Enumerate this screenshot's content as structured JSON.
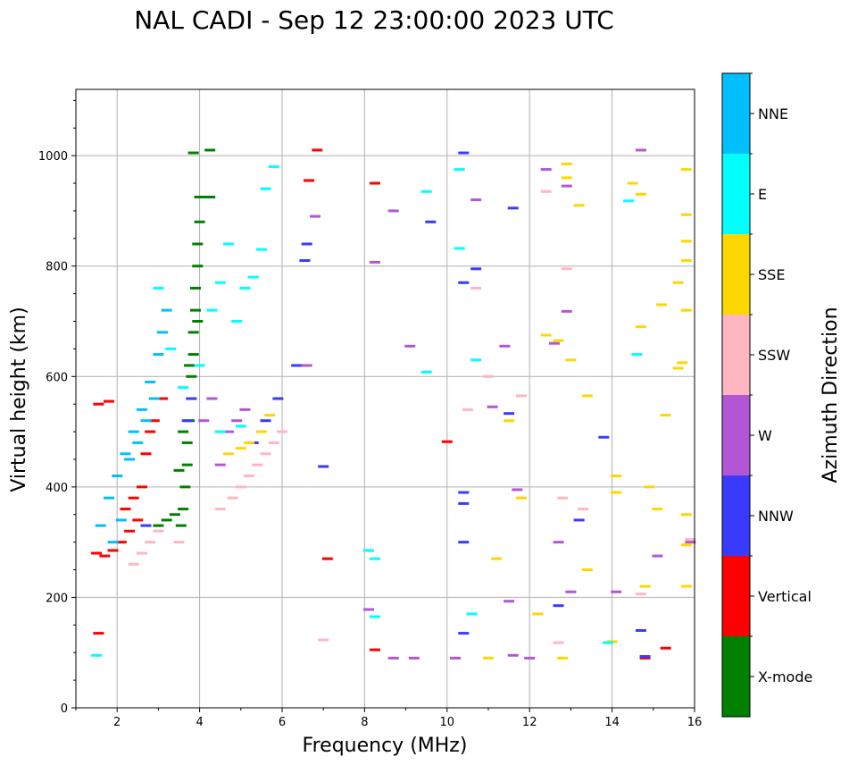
{
  "chart_data": {
    "type": "scatter",
    "title": "NAL CADI - Sep 12 23:00:00 2023 UTC",
    "xlabel": "Frequency (MHz)",
    "ylabel": "Virtual height (km)",
    "xlim": [
      1,
      16
    ],
    "ylim": [
      0,
      1120
    ],
    "x_ticks": [
      2,
      4,
      6,
      8,
      10,
      12,
      14,
      16
    ],
    "y_ticks": [
      0,
      200,
      400,
      600,
      800,
      1000
    ],
    "grid": true,
    "colorbar": {
      "title": "Azimuth Direction",
      "categories": [
        {
          "label": "X-mode",
          "color": "#008000"
        },
        {
          "label": "Vertical",
          "color": "#ff0000"
        },
        {
          "label": "NNW",
          "color": "#3a3aff"
        },
        {
          "label": "W",
          "color": "#b256d6"
        },
        {
          "label": "SSW",
          "color": "#ffb6c1"
        },
        {
          "label": "SSE",
          "color": "#ffd700"
        },
        {
          "label": "E",
          "color": "#00ffff"
        },
        {
          "label": "NNE",
          "color": "#00bfff"
        }
      ]
    },
    "series": [
      {
        "name": "X-mode",
        "points": [
          [
            3.55,
            330
          ],
          [
            3.6,
            360
          ],
          [
            3.65,
            400
          ],
          [
            3.7,
            440
          ],
          [
            3.7,
            480
          ],
          [
            3.75,
            520
          ],
          [
            3.8,
            560
          ],
          [
            3.8,
            600
          ],
          [
            3.85,
            640
          ],
          [
            3.85,
            680
          ],
          [
            3.9,
            720
          ],
          [
            3.9,
            760
          ],
          [
            3.95,
            800
          ],
          [
            3.95,
            840
          ],
          [
            4.0,
            880
          ],
          [
            4.0,
            925
          ],
          [
            3.85,
            1005
          ],
          [
            4.25,
            1010
          ],
          [
            4.25,
            925
          ],
          [
            3.0,
            330
          ],
          [
            3.2,
            340
          ],
          [
            3.4,
            350
          ],
          [
            3.5,
            430
          ],
          [
            3.6,
            500
          ],
          [
            3.75,
            620
          ],
          [
            3.95,
            700
          ]
        ]
      },
      {
        "name": "Vertical",
        "points": [
          [
            1.5,
            280
          ],
          [
            1.7,
            275
          ],
          [
            1.9,
            285
          ],
          [
            2.1,
            300
          ],
          [
            2.3,
            320
          ],
          [
            2.5,
            340
          ],
          [
            2.6,
            400
          ],
          [
            2.7,
            460
          ],
          [
            2.8,
            500
          ],
          [
            2.9,
            520
          ],
          [
            3.1,
            560
          ],
          [
            1.55,
            550
          ],
          [
            1.8,
            555
          ],
          [
            1.55,
            135
          ],
          [
            6.65,
            955
          ],
          [
            6.85,
            1010
          ],
          [
            8.25,
            950
          ],
          [
            7.1,
            270
          ],
          [
            8.25,
            105
          ],
          [
            10.0,
            482
          ],
          [
            14.8,
            90
          ],
          [
            15.3,
            108
          ],
          [
            2.2,
            360
          ],
          [
            2.4,
            380
          ]
        ]
      },
      {
        "name": "NNW",
        "points": [
          [
            3.7,
            520
          ],
          [
            3.8,
            560
          ],
          [
            5.3,
            480
          ],
          [
            5.6,
            520
          ],
          [
            5.9,
            560
          ],
          [
            6.35,
            620
          ],
          [
            6.6,
            840
          ],
          [
            6.55,
            810
          ],
          [
            10.4,
            1005
          ],
          [
            10.4,
            770
          ],
          [
            10.4,
            390
          ],
          [
            10.4,
            370
          ],
          [
            10.4,
            300
          ],
          [
            10.4,
            135
          ],
          [
            9.6,
            880
          ],
          [
            10.7,
            795
          ],
          [
            11.6,
            905
          ],
          [
            11.5,
            533
          ],
          [
            12.7,
            185
          ],
          [
            13.2,
            340
          ],
          [
            13.8,
            490
          ],
          [
            14.7,
            140
          ],
          [
            14.8,
            93
          ],
          [
            2.7,
            330
          ],
          [
            7.0,
            437
          ]
        ]
      },
      {
        "name": "W",
        "points": [
          [
            4.1,
            520
          ],
          [
            4.3,
            560
          ],
          [
            4.5,
            440
          ],
          [
            4.7,
            500
          ],
          [
            4.9,
            520
          ],
          [
            5.1,
            540
          ],
          [
            6.6,
            620
          ],
          [
            6.8,
            890
          ],
          [
            8.25,
            807
          ],
          [
            8.7,
            900
          ],
          [
            9.1,
            655
          ],
          [
            10.7,
            920
          ],
          [
            11.1,
            545
          ],
          [
            11.4,
            655
          ],
          [
            11.7,
            395
          ],
          [
            12.4,
            975
          ],
          [
            12.6,
            660
          ],
          [
            12.9,
            945
          ],
          [
            12.9,
            718
          ],
          [
            13.0,
            210
          ],
          [
            12.7,
            300
          ],
          [
            14.1,
            210
          ],
          [
            14.7,
            1010
          ],
          [
            15.1,
            275
          ],
          [
            15.9,
            300
          ],
          [
            8.1,
            178
          ],
          [
            8.7,
            90
          ],
          [
            9.2,
            90
          ],
          [
            10.2,
            90
          ],
          [
            11.5,
            193
          ],
          [
            11.6,
            95
          ],
          [
            12.0,
            90
          ]
        ]
      },
      {
        "name": "SSW",
        "points": [
          [
            2.4,
            260
          ],
          [
            2.6,
            280
          ],
          [
            2.8,
            300
          ],
          [
            3.0,
            320
          ],
          [
            3.5,
            300
          ],
          [
            4.5,
            360
          ],
          [
            4.8,
            380
          ],
          [
            5.0,
            400
          ],
          [
            5.2,
            420
          ],
          [
            5.4,
            440
          ],
          [
            5.6,
            460
          ],
          [
            5.8,
            480
          ],
          [
            6.0,
            500
          ],
          [
            10.7,
            760
          ],
          [
            11.0,
            600
          ],
          [
            12.4,
            935
          ],
          [
            12.9,
            795
          ],
          [
            12.8,
            380
          ],
          [
            13.3,
            360
          ],
          [
            14.7,
            206
          ],
          [
            15.9,
            305
          ],
          [
            12.7,
            118
          ],
          [
            7.0,
            123
          ],
          [
            10.5,
            540
          ],
          [
            11.8,
            565
          ]
        ]
      },
      {
        "name": "SSE",
        "points": [
          [
            4.7,
            460
          ],
          [
            5.0,
            470
          ],
          [
            5.2,
            480
          ],
          [
            5.5,
            500
          ],
          [
            5.7,
            530
          ],
          [
            12.9,
            985
          ],
          [
            12.9,
            960
          ],
          [
            13.2,
            910
          ],
          [
            13.4,
            565
          ],
          [
            14.5,
            950
          ],
          [
            14.7,
            930
          ],
          [
            14.7,
            690
          ],
          [
            15.2,
            730
          ],
          [
            15.6,
            770
          ],
          [
            15.8,
            720
          ],
          [
            15.7,
            625
          ],
          [
            15.6,
            615
          ],
          [
            15.3,
            530
          ],
          [
            15.8,
            893
          ],
          [
            15.8,
            845
          ],
          [
            15.8,
            810
          ],
          [
            15.8,
            975
          ],
          [
            14.9,
            400
          ],
          [
            15.1,
            360
          ],
          [
            15.8,
            350
          ],
          [
            15.8,
            295
          ],
          [
            15.8,
            220
          ],
          [
            14.8,
            220
          ],
          [
            14.1,
            420
          ],
          [
            14.1,
            390
          ],
          [
            14.0,
            120
          ],
          [
            13.4,
            250
          ],
          [
            13.0,
            630
          ],
          [
            12.7,
            665
          ],
          [
            12.4,
            675
          ],
          [
            12.2,
            170
          ],
          [
            12.8,
            90
          ],
          [
            11.2,
            270
          ],
          [
            11.8,
            380
          ],
          [
            11.5,
            520
          ],
          [
            11.0,
            90
          ]
        ]
      },
      {
        "name": "E",
        "points": [
          [
            3.0,
            760
          ],
          [
            3.3,
            650
          ],
          [
            3.6,
            580
          ],
          [
            4.0,
            620
          ],
          [
            4.3,
            720
          ],
          [
            4.5,
            770
          ],
          [
            4.7,
            840
          ],
          [
            4.9,
            700
          ],
          [
            5.1,
            760
          ],
          [
            5.3,
            780
          ],
          [
            5.5,
            830
          ],
          [
            5.8,
            980
          ],
          [
            5.6,
            940
          ],
          [
            4.5,
            500
          ],
          [
            5.0,
            510
          ],
          [
            9.5,
            935
          ],
          [
            9.5,
            608
          ],
          [
            10.3,
            975
          ],
          [
            10.3,
            832
          ],
          [
            14.4,
            918
          ],
          [
            14.6,
            640
          ],
          [
            8.1,
            285
          ],
          [
            8.25,
            270
          ],
          [
            8.25,
            165
          ],
          [
            1.5,
            95
          ],
          [
            10.7,
            630
          ],
          [
            10.6,
            170
          ],
          [
            13.9,
            118
          ]
        ]
      },
      {
        "name": "NNE",
        "points": [
          [
            1.6,
            330
          ],
          [
            1.8,
            380
          ],
          [
            2.0,
            420
          ],
          [
            2.2,
            460
          ],
          [
            2.4,
            500
          ],
          [
            2.6,
            540
          ],
          [
            2.8,
            590
          ],
          [
            3.0,
            640
          ],
          [
            3.1,
            680
          ],
          [
            3.2,
            720
          ],
          [
            2.3,
            450
          ],
          [
            2.5,
            480
          ],
          [
            2.7,
            520
          ],
          [
            2.9,
            560
          ],
          [
            1.9,
            300
          ],
          [
            2.1,
            340
          ]
        ]
      }
    ]
  }
}
